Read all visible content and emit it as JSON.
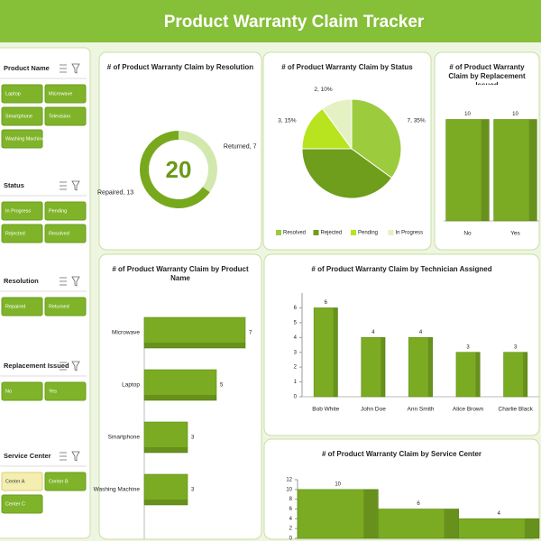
{
  "header": {
    "title": "Product Warranty Claim Tracker"
  },
  "slicers": [
    {
      "title": "Product Name",
      "items": [
        "Laptop",
        "Microwave",
        "Smartphone",
        "Television",
        "Washing Machine"
      ]
    },
    {
      "title": "Status",
      "items": [
        "In Progress",
        "Pending",
        "Rejected",
        "Resolved"
      ]
    },
    {
      "title": "Resolution",
      "items": [
        "Repaired",
        "Returned"
      ]
    },
    {
      "title": "Replacement Issued",
      "items": [
        "No",
        "Yes"
      ]
    },
    {
      "title": "Service Center",
      "items": [
        "Center A",
        "Center B",
        "Center C"
      ],
      "selected": "Center A"
    }
  ],
  "chart_data": [
    {
      "type": "donut",
      "title": "# of Product Warranty Claim by Resolution",
      "categories": [
        "Returned",
        "Repaired"
      ],
      "values": [
        7,
        13
      ],
      "value_labels": [
        "Returned, 7",
        "Repaired, 13"
      ],
      "total": 20,
      "colors": [
        "#d3e8ad",
        "#78a91d"
      ]
    },
    {
      "type": "pie",
      "title": "# of Product Warranty Claim by Status",
      "categories": [
        "Resolved",
        "Rejected",
        "Pending",
        "In Progress"
      ],
      "values": [
        7,
        8,
        3,
        2
      ],
      "value_labels": [
        "7, 35%",
        null,
        "3, 15%",
        "2, 10%"
      ],
      "colors": [
        "#9ccb3e",
        "#6f9d1c",
        "#b7e41f",
        "#e4f1c2"
      ]
    },
    {
      "type": "bar",
      "title": "# of Product Warranty Claim by Replacement Issued",
      "categories": [
        "No",
        "Yes"
      ],
      "values": [
        10,
        10
      ],
      "ylim": [
        0,
        12
      ],
      "color": "#7aab22"
    },
    {
      "type": "hbar",
      "title": "# of Product Warranty Claim by Product Name",
      "categories": [
        "Microwave",
        "Laptop",
        "Smartphone",
        "Washing Machine"
      ],
      "values": [
        7,
        5,
        3,
        3
      ],
      "xlim": [
        0,
        7
      ],
      "color": "#7aab22"
    },
    {
      "type": "bar",
      "title": "# of Product Warranty Claim by Technician Assigned",
      "categories": [
        "Bob White",
        "John Doe",
        "Ann Smith",
        "Alice Brown",
        "Charlie Black"
      ],
      "values": [
        6,
        4,
        4,
        3,
        3
      ],
      "ylim": [
        0,
        7
      ],
      "yticks": [
        0,
        1,
        2,
        3,
        4,
        5,
        6
      ],
      "color": "#7aab22"
    },
    {
      "type": "bar",
      "title": "# of Product Warranty Claim by Service Center",
      "categories": [
        null,
        null,
        null
      ],
      "values": [
        10,
        6,
        4
      ],
      "ylim": [
        0,
        12
      ],
      "yticks": [
        0,
        2,
        4,
        6,
        8,
        10,
        12
      ],
      "color": "#7aab22"
    }
  ]
}
